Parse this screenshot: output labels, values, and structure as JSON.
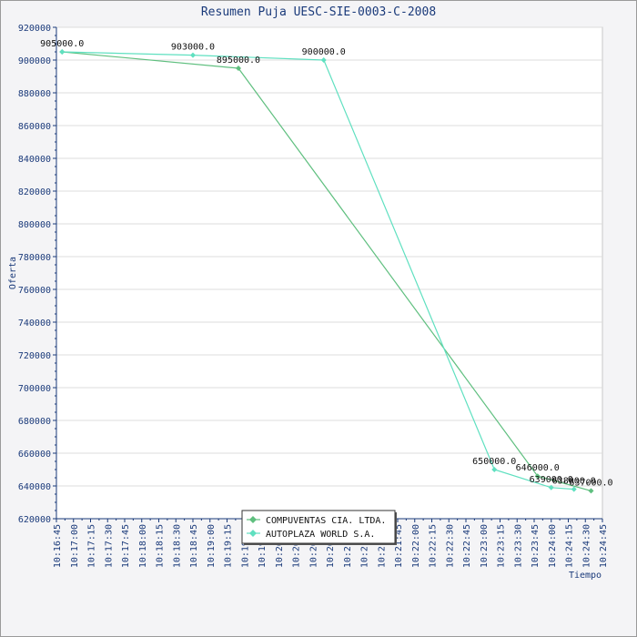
{
  "chart_data": {
    "type": "line",
    "title": "Resumen Puja UESC-SIE-0003-C-2008",
    "xlabel": "Tiempo",
    "ylabel": "Oferta",
    "ylim": [
      620000,
      920000
    ],
    "xlim": [
      "10:16:45",
      "10:24:45"
    ],
    "grid": true,
    "legend_position": "bottom-center",
    "y_ticks": [
      "620000",
      "640000",
      "660000",
      "680000",
      "700000",
      "720000",
      "740000",
      "760000",
      "780000",
      "800000",
      "820000",
      "840000",
      "860000",
      "880000",
      "900000",
      "920000"
    ],
    "x_ticks": [
      "10:16:45",
      "10:17:00",
      "10:17:15",
      "10:17:30",
      "10:17:45",
      "10:18:00",
      "10:18:15",
      "10:18:30",
      "10:18:45",
      "10:19:00",
      "10:19:15",
      "10:19:30",
      "10:19:45",
      "10:20:00",
      "10:20:15",
      "10:20:30",
      "10:20:45",
      "10:21:00",
      "10:21:15",
      "10:21:30",
      "10:21:45",
      "10:22:00",
      "10:22:15",
      "10:22:30",
      "10:22:45",
      "10:23:00",
      "10:23:15",
      "10:23:30",
      "10:23:45",
      "10:24:00",
      "10:24:15",
      "10:24:30",
      "10:24:45"
    ],
    "series": [
      {
        "name": "COMPUVENTAS CIA. LTDA.",
        "color": "#5fbf7f",
        "points": [
          {
            "t": "10:16:50",
            "y": 905000,
            "label": "905000.0"
          },
          {
            "t": "10:19:25",
            "y": 895000,
            "label": "895000.0"
          },
          {
            "t": "10:23:48",
            "y": 646000,
            "label": "646000.0"
          },
          {
            "t": "10:24:35",
            "y": 637000,
            "label": "637000.0"
          }
        ]
      },
      {
        "name": "AUTOPLAZA WORLD S.A.",
        "color": "#5fe0c0",
        "points": [
          {
            "t": "10:16:50",
            "y": 905000
          },
          {
            "t": "10:18:45",
            "y": 903000,
            "label": "903000.0"
          },
          {
            "t": "10:20:40",
            "y": 900000,
            "label": "900000.0"
          },
          {
            "t": "10:23:10",
            "y": 650000,
            "label": "650000.0"
          },
          {
            "t": "10:24:00",
            "y": 639000,
            "label": "639000.0"
          },
          {
            "t": "10:24:20",
            "y": 638000,
            "label": "638000.0"
          }
        ]
      }
    ]
  }
}
